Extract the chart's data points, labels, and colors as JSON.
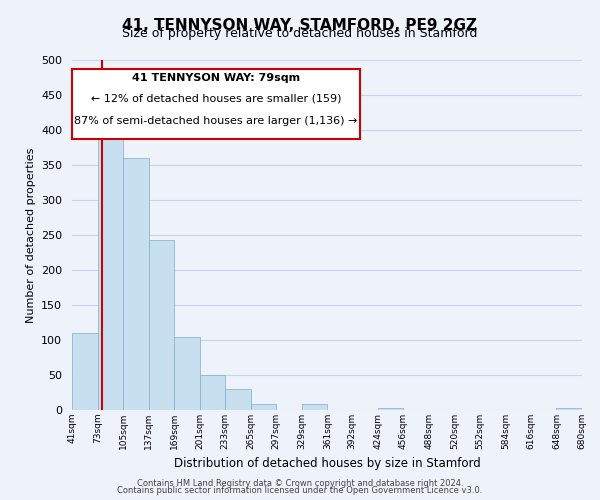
{
  "title": "41, TENNYSON WAY, STAMFORD, PE9 2GZ",
  "subtitle": "Size of property relative to detached houses in Stamford",
  "xlabel": "Distribution of detached houses by size in Stamford",
  "ylabel": "Number of detached properties",
  "bar_edges": [
    41,
    73,
    105,
    137,
    169,
    201,
    233,
    265,
    297,
    329,
    361,
    392,
    424,
    456,
    488,
    520,
    552,
    584,
    616,
    648,
    680
  ],
  "bar_heights": [
    110,
    395,
    360,
    243,
    105,
    50,
    30,
    8,
    0,
    8,
    0,
    0,
    3,
    0,
    0,
    0,
    0,
    0,
    0,
    3
  ],
  "bar_color": "#c8dff0",
  "bar_edge_color": "#7aaed0",
  "property_line_x": 79,
  "property_line_color": "#cc0000",
  "ylim": [
    0,
    500
  ],
  "yticks": [
    0,
    50,
    100,
    150,
    200,
    250,
    300,
    350,
    400,
    450,
    500
  ],
  "xtick_labels": [
    "41sqm",
    "73sqm",
    "105sqm",
    "137sqm",
    "169sqm",
    "201sqm",
    "233sqm",
    "265sqm",
    "297sqm",
    "329sqm",
    "361sqm",
    "392sqm",
    "424sqm",
    "456sqm",
    "488sqm",
    "520sqm",
    "552sqm",
    "584sqm",
    "616sqm",
    "648sqm",
    "680sqm"
  ],
  "annotation_title": "41 TENNYSON WAY: 79sqm",
  "annotation_line1": "← 12% of detached houses are smaller (159)",
  "annotation_line2": "87% of semi-detached houses are larger (1,136) →",
  "annotation_box_color": "#ffffff",
  "annotation_box_edge": "#cc0000",
  "grid_color": "#c8d4e8",
  "bg_color": "#eef2fa",
  "footer1": "Contains HM Land Registry data © Crown copyright and database right 2024.",
  "footer2": "Contains public sector information licensed under the Open Government Licence v3.0."
}
